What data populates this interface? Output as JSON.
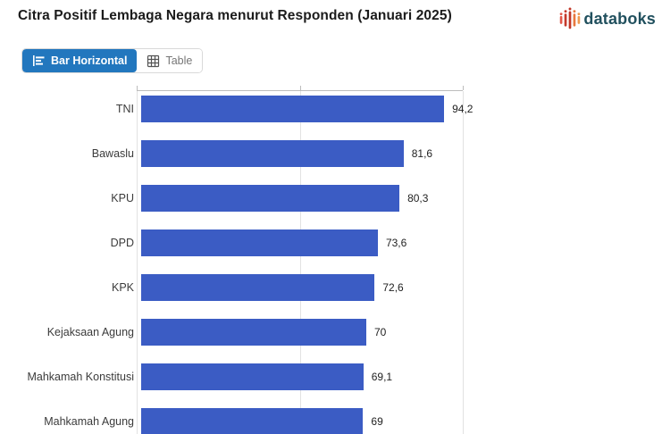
{
  "header": {
    "title": "Citra Positif Lembaga Negara menurut Responden (Januari 2025)",
    "logo_text": "databoks"
  },
  "toolbar": {
    "tabs": [
      {
        "label": "Bar Horizontal",
        "active": true
      },
      {
        "label": "Table",
        "active": false
      }
    ]
  },
  "chart_data": {
    "type": "bar",
    "orientation": "horizontal",
    "title": "Citra Positif Lembaga Negara menurut Responden (Januari 2025)",
    "categories": [
      "TNI",
      "Bawaslu",
      "KPU",
      "DPD",
      "KPK",
      "Kejaksaan Agung",
      "Mahkamah Konstitusi",
      "Mahkamah Agung"
    ],
    "values": [
      94.2,
      81.6,
      80.3,
      73.6,
      72.6,
      70,
      69.1,
      69
    ],
    "value_labels": [
      "94,2",
      "81,6",
      "80,3",
      "73,6",
      "72,6",
      "70",
      "69,1",
      "69"
    ],
    "xlim": [
      0,
      100
    ],
    "gridlines": [
      0,
      50,
      100
    ],
    "grid": true,
    "legend": false,
    "bar_color": "#3b5cc4"
  },
  "colors": {
    "accent_tab": "#2277be",
    "bar": "#3b5cc4",
    "logo_text": "#21505e",
    "logo_icon": [
      "#e2584a",
      "#c43a2c",
      "#c13526",
      "#e8783f",
      "#f0994f"
    ]
  }
}
